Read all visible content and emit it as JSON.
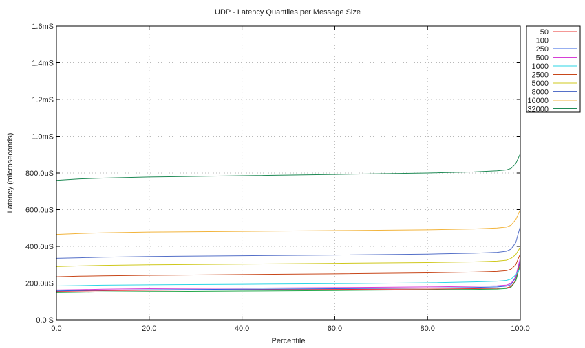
{
  "chart_data": {
    "type": "line",
    "title": "UDP - Latency Quantiles per Message Size",
    "xlabel": "Percentile",
    "ylabel": "Latency (microseconds)",
    "xlim": [
      0,
      100
    ],
    "ylim": [
      0,
      1600
    ],
    "x_ticks": [
      {
        "value": 0,
        "label": "0.0"
      },
      {
        "value": 20,
        "label": "20.0"
      },
      {
        "value": 40,
        "label": "40.0"
      },
      {
        "value": 60,
        "label": "60.0"
      },
      {
        "value": 80,
        "label": "80.0"
      },
      {
        "value": 100,
        "label": "100.0"
      }
    ],
    "y_ticks": [
      {
        "value": 0,
        "label": "0.0 S"
      },
      {
        "value": 200,
        "label": "200.0uS"
      },
      {
        "value": 400,
        "label": "400.0uS"
      },
      {
        "value": 600,
        "label": "600.0uS"
      },
      {
        "value": 800,
        "label": "800.0uS"
      },
      {
        "value": 1000,
        "label": "1.0mS"
      },
      {
        "value": 1200,
        "label": "1.2mS"
      },
      {
        "value": 1400,
        "label": "1.4mS"
      },
      {
        "value": 1600,
        "label": "1.6mS"
      }
    ],
    "grid": true,
    "legend_position": "outside-top-right",
    "x": [
      0,
      5,
      10,
      20,
      40,
      60,
      80,
      90,
      95,
      97,
      98,
      99,
      100
    ],
    "series": [
      {
        "name": "50",
        "color": "#e8302e",
        "values": [
          155,
          157,
          159,
          161,
          164,
          166,
          168,
          170,
          172,
          175,
          182,
          215,
          320
        ]
      },
      {
        "name": "100",
        "color": "#23a84a",
        "values": [
          148,
          150,
          152,
          154,
          157,
          160,
          164,
          166,
          168,
          171,
          178,
          210,
          300
        ]
      },
      {
        "name": "250",
        "color": "#2f5fe0",
        "values": [
          158,
          160,
          162,
          164,
          167,
          170,
          174,
          177,
          180,
          184,
          192,
          230,
          330
        ]
      },
      {
        "name": "500",
        "color": "#d63fd6",
        "values": [
          163,
          165,
          167,
          170,
          173,
          176,
          180,
          183,
          186,
          190,
          198,
          235,
          340
        ]
      },
      {
        "name": "1000",
        "color": "#2bd6e6",
        "values": [
          185,
          187,
          189,
          191,
          194,
          197,
          202,
          207,
          211,
          215,
          222,
          245,
          280
        ]
      },
      {
        "name": "2500",
        "color": "#c8471a",
        "values": [
          235,
          238,
          240,
          243,
          247,
          251,
          256,
          260,
          264,
          268,
          276,
          300,
          360
        ]
      },
      {
        "name": "5000",
        "color": "#cfc81c",
        "values": [
          290,
          294,
          297,
          300,
          304,
          308,
          312,
          316,
          320,
          325,
          335,
          355,
          395
        ]
      },
      {
        "name": "8000",
        "color": "#5570c8",
        "values": [
          335,
          338,
          341,
          345,
          349,
          353,
          358,
          363,
          368,
          374,
          385,
          420,
          510
        ]
      },
      {
        "name": "16000",
        "color": "#f2b43c",
        "values": [
          465,
          470,
          474,
          478,
          482,
          486,
          490,
          495,
          500,
          505,
          515,
          545,
          600
        ]
      },
      {
        "name": "32000",
        "color": "#1f8a55",
        "values": [
          760,
          768,
          772,
          778,
          785,
          792,
          800,
          806,
          812,
          817,
          825,
          850,
          905
        ]
      }
    ]
  }
}
